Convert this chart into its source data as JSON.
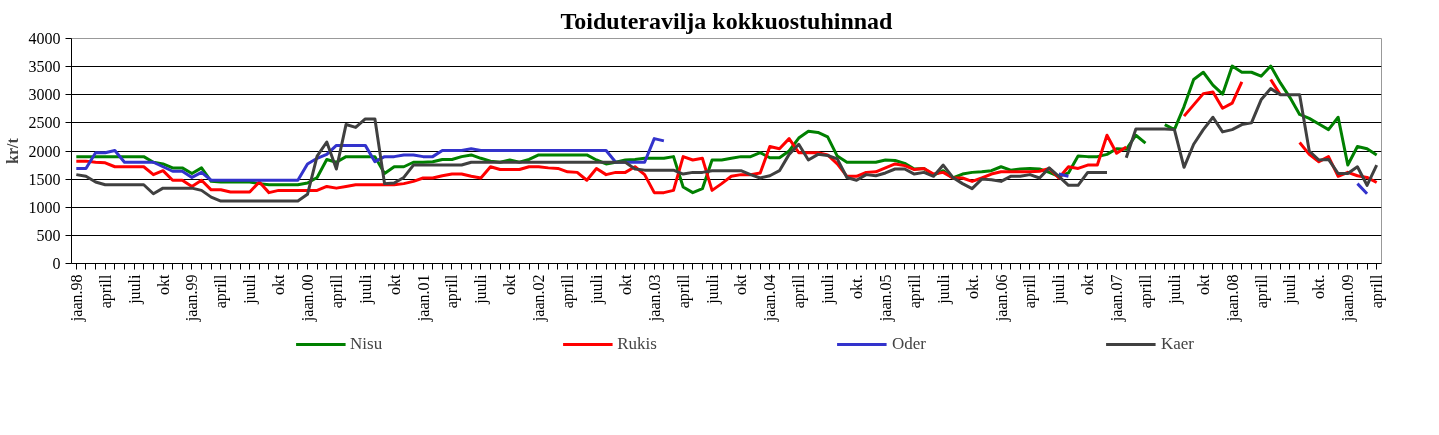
{
  "chart_data": {
    "type": "line",
    "title": "Toiduteravilja kokkuostuhinnad",
    "ylabel": "kr/t",
    "categories": [
      "jaan.98",
      null,
      null,
      "aprill",
      null,
      null,
      "juuli",
      null,
      null,
      "okt",
      null,
      null,
      "jaan.99",
      null,
      null,
      "aprill",
      null,
      null,
      "juuli",
      null,
      null,
      "okt",
      null,
      null,
      "jaan.00",
      null,
      null,
      "aprill",
      null,
      null,
      "juuli",
      null,
      null,
      "okt",
      null,
      null,
      "jaan.01",
      null,
      null,
      "aprill",
      null,
      null,
      "juuli",
      null,
      null,
      "okt",
      null,
      null,
      "jaan.02",
      null,
      null,
      "aprill",
      null,
      null,
      "juuli",
      null,
      null,
      "okt",
      null,
      null,
      "jaan.03",
      null,
      null,
      "aprill",
      null,
      null,
      "juuli",
      null,
      null,
      "okt",
      null,
      null,
      "jaan.04",
      null,
      null,
      "aprill",
      null,
      null,
      "juuli",
      null,
      null,
      "okt.",
      null,
      null,
      "jaan.05",
      null,
      null,
      "aprill",
      null,
      null,
      "juuli",
      null,
      null,
      "okt.",
      null,
      null,
      "jaan.06",
      null,
      null,
      "aprill",
      null,
      null,
      "juuli",
      null,
      null,
      "okt",
      null,
      null,
      "jaan.07",
      null,
      null,
      "aprill",
      null,
      null,
      "juuli",
      null,
      null,
      "okt",
      null,
      null,
      "jaan.08",
      null,
      null,
      "aprill",
      null,
      null,
      "juuli",
      null,
      null,
      "okt.",
      null,
      null,
      "jaan.09",
      null,
      null,
      "aprill"
    ],
    "series": [
      {
        "name": "Nisu",
        "color": "#008000",
        "values": [
          1900,
          1900,
          1900,
          1900,
          1900,
          1900,
          1900,
          1900,
          1800,
          1770,
          1700,
          1700,
          1600,
          1700,
          1460,
          1450,
          1450,
          1450,
          1450,
          1420,
          1400,
          1400,
          1400,
          1400,
          1430,
          1530,
          1850,
          1800,
          1900,
          1900,
          1900,
          1900,
          1600,
          1720,
          1720,
          1800,
          1800,
          1810,
          1850,
          1850,
          1900,
          1930,
          1870,
          1820,
          1800,
          1840,
          1800,
          1850,
          1930,
          1930,
          1930,
          1930,
          1930,
          1930,
          1840,
          1770,
          1800,
          1840,
          1850,
          1870,
          1870,
          1870,
          1900,
          1360,
          1260,
          1330,
          1840,
          1840,
          1870,
          1900,
          1900,
          1970,
          1880,
          1880,
          2000,
          2230,
          2350,
          2330,
          2250,
          1910,
          1800,
          1800,
          1800,
          1800,
          1840,
          1830,
          1780,
          1680,
          1690,
          1570,
          1650,
          1520,
          1590,
          1620,
          1630,
          1650,
          1720,
          1660,
          1680,
          1690,
          1680,
          1620,
          1550,
          1610,
          1910,
          1900,
          1900,
          1940,
          2040,
          2030,
          2280,
          2140,
          null,
          2470,
          2380,
          2790,
          3270,
          3400,
          3170,
          3010,
          3510,
          3400,
          3400,
          3330,
          3510,
          3210,
          2950,
          2650,
          2580,
          2480,
          2380,
          2600,
          1750,
          2080,
          2040,
          1930
        ]
      },
      {
        "name": "Rukis",
        "color": "#ff0000",
        "values": [
          1820,
          1820,
          1800,
          1790,
          1720,
          1720,
          1720,
          1720,
          1580,
          1650,
          1480,
          1480,
          1370,
          1480,
          1310,
          1310,
          1270,
          1270,
          1270,
          1450,
          1260,
          1300,
          1300,
          1300,
          1300,
          1300,
          1370,
          1340,
          1370,
          1400,
          1400,
          1400,
          1400,
          1400,
          1420,
          1460,
          1520,
          1520,
          1560,
          1590,
          1590,
          1550,
          1520,
          1720,
          1670,
          1670,
          1670,
          1720,
          1720,
          1700,
          1690,
          1630,
          1620,
          1480,
          1690,
          1580,
          1620,
          1620,
          1720,
          1580,
          1260,
          1260,
          1300,
          1900,
          1840,
          1870,
          1300,
          1420,
          1550,
          1580,
          1580,
          1610,
          2080,
          2040,
          2220,
          1970,
          1970,
          1970,
          1930,
          1770,
          1550,
          1550,
          1620,
          1630,
          1700,
          1770,
          1740,
          1670,
          1690,
          1590,
          1620,
          1520,
          1520,
          1460,
          1520,
          1590,
          1630,
          1630,
          1630,
          1630,
          1640,
          1690,
          1520,
          1720,
          1690,
          1750,
          1750,
          2280,
          1960,
          2070,
          null,
          null,
          null,
          null,
          null,
          2620,
          2820,
          3020,
          3050,
          2760,
          2850,
          3230,
          null,
          null,
          3270,
          3000,
          null,
          2150,
          1940,
          1810,
          1900,
          1550,
          1620,
          1560,
          1530,
          1440
        ]
      },
      {
        "name": "Oder",
        "color": "#3333cc",
        "values": [
          1690,
          1690,
          1970,
          1970,
          2010,
          1800,
          1800,
          1800,
          1800,
          1720,
          1640,
          1640,
          1530,
          1620,
          1480,
          1480,
          1480,
          1480,
          1480,
          1480,
          1480,
          1480,
          1480,
          1480,
          1770,
          1870,
          1940,
          2100,
          2100,
          2100,
          2100,
          1810,
          1900,
          1900,
          1930,
          1930,
          1900,
          1900,
          2010,
          2010,
          2010,
          2040,
          2010,
          2010,
          2010,
          2010,
          2010,
          2010,
          2010,
          2010,
          2010,
          2010,
          2010,
          2010,
          2010,
          2010,
          1800,
          1800,
          1800,
          1800,
          2220,
          2180,
          null,
          null,
          null,
          null,
          null,
          null,
          null,
          null,
          null,
          null,
          null,
          null,
          null,
          null,
          null,
          null,
          null,
          null,
          null,
          null,
          null,
          null,
          null,
          null,
          null,
          null,
          null,
          null,
          null,
          null,
          null,
          null,
          null,
          null,
          null,
          null,
          null,
          null,
          null,
          null,
          1590,
          1550,
          null,
          null,
          null,
          null,
          null,
          null,
          null,
          null,
          null,
          null,
          null,
          null,
          null,
          null,
          null,
          null,
          null,
          null,
          null,
          null,
          null,
          null,
          null,
          null,
          null,
          null,
          null,
          null,
          null,
          1420,
          1240,
          null
        ]
      },
      {
        "name": "Kaer",
        "color": "#404040",
        "values": [
          1580,
          1550,
          1450,
          1400,
          1400,
          1400,
          1400,
          1400,
          1240,
          1340,
          1340,
          1340,
          1340,
          1300,
          1180,
          1110,
          1110,
          1110,
          1110,
          1110,
          1110,
          1110,
          1110,
          1110,
          1230,
          1910,
          2160,
          1680,
          2470,
          2420,
          2570,
          2570,
          1420,
          1430,
          1530,
          1750,
          1750,
          1750,
          1750,
          1750,
          1750,
          1800,
          1800,
          1800,
          1800,
          1800,
          1800,
          1800,
          1800,
          1800,
          1800,
          1800,
          1800,
          1800,
          1800,
          1800,
          1800,
          1800,
          1680,
          1660,
          1660,
          1660,
          1660,
          1590,
          1620,
          1620,
          1650,
          1650,
          1650,
          1650,
          1580,
          1520,
          1560,
          1650,
          1940,
          2120,
          1840,
          1940,
          1920,
          1860,
          1530,
          1480,
          1580,
          1560,
          1610,
          1680,
          1680,
          1590,
          1620,
          1550,
          1750,
          1530,
          1420,
          1330,
          1500,
          1490,
          1460,
          1550,
          1550,
          1580,
          1520,
          1700,
          1550,
          1390,
          1390,
          1620,
          1620,
          1620,
          null,
          1880,
          2390,
          2390,
          2390,
          2390,
          2380,
          1710,
          2120,
          2380,
          2600,
          2340,
          2380,
          2470,
          2500,
          2910,
          3110,
          3000,
          3000,
          3000,
          2000,
          1840,
          1850,
          1600,
          1600,
          1720,
          1390,
          1750
        ]
      }
    ],
    "ylim": [
      0,
      4000
    ],
    "yticks": [
      0,
      500,
      1000,
      1500,
      2000,
      2500,
      3000,
      3500,
      4000
    ],
    "grid": "y",
    "legend": "bottom",
    "marker": "none",
    "line_style": "solid"
  }
}
